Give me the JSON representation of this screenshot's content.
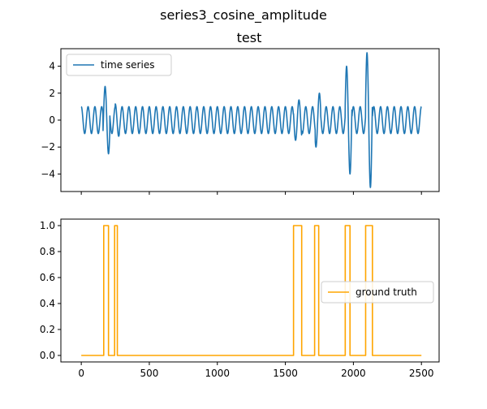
{
  "figure": {
    "suptitle": "series3_cosine_amplitude"
  },
  "chart_data": [
    {
      "type": "line",
      "title": "test",
      "xlabel": "",
      "ylabel": "",
      "xlim": [
        -150,
        2630
      ],
      "ylim": [
        -5.3,
        5.3
      ],
      "yticks": [
        -4,
        -2,
        0,
        2,
        4
      ],
      "xticks": [
        0,
        500,
        1000,
        1500,
        2000,
        2500
      ],
      "show_xtick_labels": false,
      "legend": {
        "position": "top-left"
      },
      "series": [
        {
          "name": "time series",
          "color": "#1f77b4",
          "generator": {
            "kind": "cosine",
            "n_points": 2500,
            "period": 50,
            "amplitude": 1,
            "anomalies": [
              {
                "start": 160,
                "end": 210,
                "amplitude": -2.5
              },
              {
                "start": 250,
                "end": 280,
                "amplitude": 1.2
              },
              {
                "start": 1560,
                "end": 1620,
                "amplitude": 1.5
              },
              {
                "start": 1720,
                "end": 1760,
                "amplitude": 2.0
              },
              {
                "start": 1940,
                "end": 1990,
                "amplitude": 4.0
              },
              {
                "start": 2090,
                "end": 2140,
                "amplitude": 5.0
              }
            ]
          }
        }
      ]
    },
    {
      "type": "line",
      "title": "",
      "xlabel": "",
      "ylabel": "",
      "xlim": [
        -150,
        2630
      ],
      "ylim": [
        -0.05,
        1.05
      ],
      "yticks": [
        0.0,
        0.2,
        0.4,
        0.6,
        0.8,
        1.0
      ],
      "ytick_labels": [
        "0.0",
        "0.2",
        "0.4",
        "0.6",
        "0.8",
        "1.0"
      ],
      "xticks": [
        0,
        500,
        1000,
        1500,
        2000,
        2500
      ],
      "xtick_labels": [
        "0",
        "500",
        "1000",
        "1500",
        "2000",
        "2500"
      ],
      "legend": {
        "position": "center-right"
      },
      "series": [
        {
          "name": "ground truth",
          "color": "#ffa500",
          "steps": [
            [
              0,
              0
            ],
            [
              165,
              0
            ],
            [
              165,
              1
            ],
            [
              200,
              1
            ],
            [
              200,
              0
            ],
            [
              245,
              0
            ],
            [
              245,
              1
            ],
            [
              265,
              1
            ],
            [
              265,
              0
            ],
            [
              1560,
              0
            ],
            [
              1560,
              1
            ],
            [
              1620,
              1
            ],
            [
              1620,
              0
            ],
            [
              1715,
              0
            ],
            [
              1715,
              1
            ],
            [
              1745,
              1
            ],
            [
              1745,
              0
            ],
            [
              1940,
              0
            ],
            [
              1940,
              1
            ],
            [
              1975,
              1
            ],
            [
              1975,
              0
            ],
            [
              2090,
              0
            ],
            [
              2090,
              1
            ],
            [
              2140,
              1
            ],
            [
              2140,
              0
            ],
            [
              2500,
              0
            ]
          ]
        }
      ]
    }
  ]
}
